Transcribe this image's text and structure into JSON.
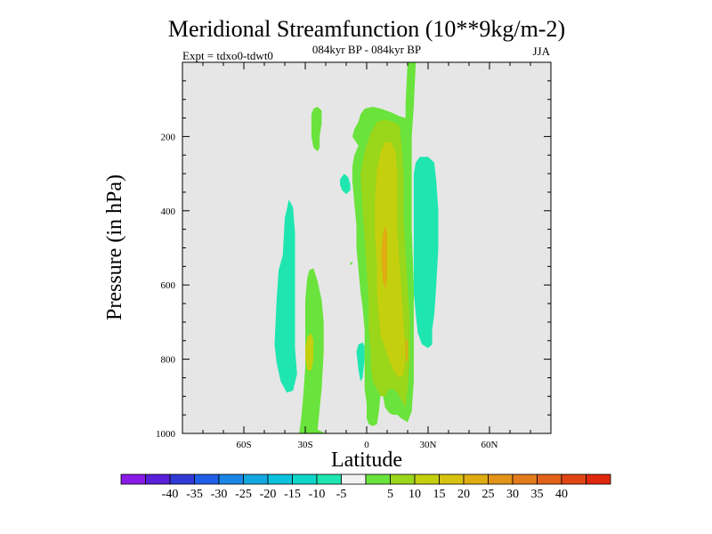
{
  "chart_data": {
    "type": "contour",
    "title": "Meridional Streamfunction (10**9kg/m-2)",
    "subtitle_left": "Expt = tdxo0-tdwt0",
    "subtitle_center": "084kyr BP - 084kyr BP",
    "subtitle_right": "JJA",
    "xlabel": "Latitude",
    "ylabel": "Pressure (in hPa)",
    "xlim": [
      -90,
      90
    ],
    "ylim": [
      1000,
      0
    ],
    "x_ticks": [
      {
        "value": -60,
        "label": "60S"
      },
      {
        "value": -30,
        "label": "30S"
      },
      {
        "value": 0,
        "label": "0"
      },
      {
        "value": 30,
        "label": "30N"
      },
      {
        "value": 60,
        "label": "60N"
      }
    ],
    "y_ticks": [
      {
        "value": 200,
        "label": "200"
      },
      {
        "value": 400,
        "label": "400"
      },
      {
        "value": 600,
        "label": "600"
      },
      {
        "value": 800,
        "label": "800"
      },
      {
        "value": 1000,
        "label": "1000"
      }
    ],
    "background_color": "#e6e6e6",
    "colorbar": {
      "colors": [
        "#8a1be6",
        "#5a1fd8",
        "#2f3ad6",
        "#1f5ee6",
        "#1a86e6",
        "#13a8e0",
        "#0bc2dc",
        "#10d6c8",
        "#1fe6b0",
        "#f2f2f2",
        "#6ae33c",
        "#9ad61a",
        "#c4cf0e",
        "#d8c210",
        "#e0ac12",
        "#e3951a",
        "#e27c1c",
        "#e2621a",
        "#e24514",
        "#e0280e"
      ],
      "labels": [
        "-40",
        "-35",
        "-30",
        "-25",
        "-20",
        "-15",
        "-10",
        "-5",
        "5",
        "10",
        "15",
        "20",
        "25",
        "30",
        "35",
        "40"
      ],
      "label_after_index": [
        1,
        2,
        3,
        4,
        5,
        6,
        7,
        8,
        10,
        11,
        12,
        13,
        14,
        15,
        16,
        17
      ]
    },
    "regions": [
      {
        "level": "-10..-5",
        "color": "#1fe6b0",
        "points": [
          [
            -45,
            760
          ],
          [
            -44,
            640
          ],
          [
            -43,
            560
          ],
          [
            -41,
            520
          ],
          [
            -40,
            420
          ],
          [
            -38,
            370
          ],
          [
            -36,
            390
          ],
          [
            -35,
            460
          ],
          [
            -35,
            560
          ],
          [
            -35,
            680
          ],
          [
            -35,
            770
          ],
          [
            -34,
            840
          ],
          [
            -36,
            885
          ],
          [
            -39,
            890
          ],
          [
            -42,
            860
          ],
          [
            -44,
            810
          ]
        ]
      },
      {
        "level": "-10..-5",
        "color": "#1fe6b0",
        "points": [
          [
            23,
            370
          ],
          [
            23,
            300
          ],
          [
            24,
            270
          ],
          [
            26,
            255
          ],
          [
            30,
            255
          ],
          [
            33,
            270
          ],
          [
            34,
            320
          ],
          [
            35,
            400
          ],
          [
            35,
            500
          ],
          [
            34,
            600
          ],
          [
            33,
            680
          ],
          [
            32,
            720
          ],
          [
            32,
            760
          ],
          [
            30,
            770
          ],
          [
            27,
            760
          ],
          [
            25,
            730
          ],
          [
            24,
            680
          ],
          [
            23,
            620
          ],
          [
            23,
            520
          ],
          [
            23,
            440
          ]
        ]
      },
      {
        "level": "-10..-5",
        "color": "#1fe6b0",
        "points": [
          [
            -13,
            330
          ],
          [
            -13,
            315
          ],
          [
            -11,
            300
          ],
          [
            -9,
            310
          ],
          [
            -8,
            330
          ],
          [
            -8,
            345
          ],
          [
            -10,
            355
          ],
          [
            -12,
            345
          ]
        ]
      },
      {
        "level": "-10..-5",
        "color": "#1fe6b0",
        "points": [
          [
            -5,
            780
          ],
          [
            -4,
            760
          ],
          [
            -2,
            755
          ],
          [
            -1,
            765
          ],
          [
            -1,
            800
          ],
          [
            -2,
            850
          ],
          [
            -3,
            860
          ],
          [
            -4,
            830
          ]
        ]
      },
      {
        "level": "5..10",
        "color": "#6ae33c",
        "points": [
          [
            -27,
            140
          ],
          [
            -26,
            125
          ],
          [
            -24,
            120
          ],
          [
            -22,
            130
          ],
          [
            -22,
            165
          ],
          [
            -23,
            200
          ],
          [
            -23,
            230
          ],
          [
            -24,
            240
          ],
          [
            -26,
            230
          ],
          [
            -27,
            200
          ],
          [
            -27,
            170
          ]
        ]
      },
      {
        "level": "5..10",
        "color": "#6ae33c",
        "points": [
          [
            -30,
            720
          ],
          [
            -30,
            640
          ],
          [
            -29,
            580
          ],
          [
            -28,
            560
          ],
          [
            -26,
            555
          ],
          [
            -24,
            590
          ],
          [
            -22,
            640
          ],
          [
            -21,
            700
          ],
          [
            -21,
            780
          ],
          [
            -22,
            880
          ],
          [
            -24,
            990
          ],
          [
            -20,
            1000
          ],
          [
            -33,
            1000
          ],
          [
            -32,
            960
          ],
          [
            -31,
            900
          ],
          [
            -30,
            820
          ]
        ]
      },
      {
        "level": "5..10",
        "color": "#6ae33c",
        "points": [
          [
            -4,
            560
          ],
          [
            -5,
            500
          ],
          [
            -5,
            440
          ],
          [
            -6,
            380
          ],
          [
            -7,
            320
          ],
          [
            -7,
            280
          ],
          [
            -6,
            250
          ],
          [
            -4,
            225
          ],
          [
            -7,
            200
          ],
          [
            -6,
            180
          ],
          [
            -4,
            160
          ],
          [
            -3,
            140
          ],
          [
            -1,
            125
          ],
          [
            3,
            120
          ],
          [
            7,
            125
          ],
          [
            12,
            135
          ],
          [
            16,
            145
          ],
          [
            19,
            150
          ],
          [
            19,
            110
          ],
          [
            20,
            0
          ],
          [
            24,
            0
          ],
          [
            23,
            120
          ],
          [
            22,
            200
          ],
          [
            22,
            320
          ],
          [
            22,
            450
          ],
          [
            23,
            600
          ],
          [
            23,
            760
          ],
          [
            23,
            860
          ],
          [
            22,
            940
          ],
          [
            20,
            970
          ],
          [
            17,
            960
          ],
          [
            15,
            950
          ],
          [
            13,
            950
          ],
          [
            11,
            945
          ],
          [
            9,
            930
          ],
          [
            8,
            900
          ],
          [
            7,
            880
          ],
          [
            6,
            940
          ],
          [
            5,
            975
          ],
          [
            3,
            980
          ],
          [
            1,
            975
          ],
          [
            0,
            960
          ],
          [
            0,
            920
          ],
          [
            -1,
            880
          ],
          [
            -1,
            800
          ],
          [
            -1,
            720
          ],
          [
            -2,
            660
          ],
          [
            -3,
            620
          ]
        ]
      },
      {
        "level": "10..15",
        "color": "#9ad61a",
        "points": [
          [
            -1,
            470
          ],
          [
            -2,
            400
          ],
          [
            -3,
            300
          ],
          [
            -1,
            240
          ],
          [
            2,
            190
          ],
          [
            5,
            160
          ],
          [
            9,
            155
          ],
          [
            13,
            160
          ],
          [
            16,
            170
          ],
          [
            17,
            220
          ],
          [
            18,
            300
          ],
          [
            18,
            420
          ],
          [
            19,
            520
          ],
          [
            20,
            600
          ],
          [
            21,
            700
          ],
          [
            21,
            800
          ],
          [
            20,
            880
          ],
          [
            19,
            930
          ],
          [
            17,
            910
          ],
          [
            15,
            890
          ],
          [
            13,
            880
          ],
          [
            11,
            880
          ],
          [
            9,
            900
          ],
          [
            7,
            900
          ],
          [
            5,
            880
          ],
          [
            3,
            860
          ],
          [
            2,
            820
          ],
          [
            2,
            780
          ],
          [
            1,
            720
          ],
          [
            1,
            640
          ],
          [
            0,
            560
          ]
        ]
      },
      {
        "level": "20..25",
        "color": "#c4cf0e",
        "points": [
          [
            4,
            380
          ],
          [
            5,
            290
          ],
          [
            7,
            240
          ],
          [
            9,
            215
          ],
          [
            12,
            215
          ],
          [
            14,
            240
          ],
          [
            15,
            300
          ],
          [
            15,
            380
          ],
          [
            15,
            460
          ],
          [
            16,
            540
          ],
          [
            17,
            620
          ],
          [
            18,
            700
          ],
          [
            19,
            780
          ],
          [
            18,
            840
          ],
          [
            16,
            850
          ],
          [
            13,
            830
          ],
          [
            11,
            800
          ],
          [
            9,
            770
          ],
          [
            7,
            740
          ],
          [
            6,
            690
          ],
          [
            5,
            620
          ],
          [
            5,
            540
          ],
          [
            4,
            460
          ]
        ]
      },
      {
        "level": "20..25",
        "color": "#c4cf0e",
        "points": [
          [
            -30,
            770
          ],
          [
            -29,
            740
          ],
          [
            -27,
            730
          ],
          [
            -26,
            750
          ],
          [
            -26,
            800
          ],
          [
            -27,
            830
          ],
          [
            -29,
            830
          ],
          [
            -30,
            800
          ]
        ]
      },
      {
        "level": "25..30",
        "color": "#e0ac12",
        "points": [
          [
            7,
            520
          ],
          [
            8,
            460
          ],
          [
            9,
            440
          ],
          [
            10,
            460
          ],
          [
            10,
            520
          ],
          [
            10,
            580
          ],
          [
            9,
            610
          ],
          [
            8,
            590
          ]
        ]
      },
      {
        "level": "25..30",
        "color": "#e0ac12",
        "points": [
          [
            19,
            760
          ],
          [
            19,
            745
          ],
          [
            20,
            750
          ],
          [
            20,
            800
          ],
          [
            19,
            810
          ]
        ]
      },
      {
        "level": "5..10",
        "color": "#6ae33c",
        "points": [
          [
            -8,
            540
          ],
          [
            -7,
            538
          ],
          [
            -7,
            544
          ],
          [
            -8,
            546
          ]
        ]
      }
    ]
  }
}
